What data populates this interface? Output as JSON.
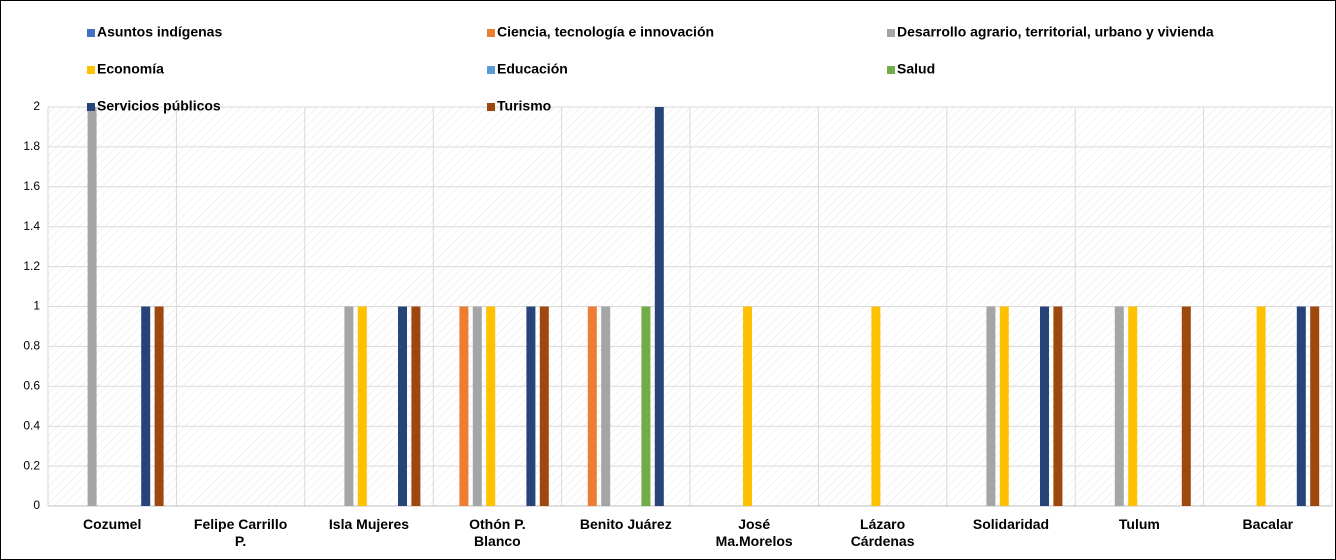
{
  "chart_data": {
    "type": "bar",
    "categories": [
      "Cozumel",
      "Felipe Carrillo P.",
      "Isla Mujeres",
      "Othón P. Blanco",
      "Benito Juárez",
      "José Ma.Morelos",
      "Lázaro Cárdenas",
      "Solidaridad",
      "Tulum",
      "Bacalar"
    ],
    "series": [
      {
        "name": "Asuntos indígenas",
        "color": "#4472c4",
        "values": [
          0,
          0,
          0,
          0,
          0,
          0,
          0,
          0,
          0,
          0
        ]
      },
      {
        "name": "Ciencia, tecnología e innovación",
        "color": "#ed7d31",
        "values": [
          0,
          0,
          0,
          1,
          1,
          0,
          0,
          0,
          0,
          0
        ]
      },
      {
        "name": "Desarrollo agrario, territorial, urbano y vivienda",
        "color": "#a5a5a5",
        "values": [
          2,
          0,
          1,
          1,
          1,
          0,
          0,
          1,
          1,
          0
        ]
      },
      {
        "name": "Economía",
        "color": "#ffc000",
        "values": [
          0,
          0,
          1,
          1,
          0,
          1,
          1,
          1,
          1,
          1
        ]
      },
      {
        "name": "Educación",
        "color": "#5b9bd5",
        "values": [
          0,
          0,
          0,
          0,
          0,
          0,
          0,
          0,
          0,
          0
        ]
      },
      {
        "name": "Salud",
        "color": "#70ad47",
        "values": [
          0,
          0,
          0,
          0,
          1,
          0,
          0,
          0,
          0,
          0
        ]
      },
      {
        "name": "Servicios públicos",
        "color": "#264478",
        "values": [
          1,
          0,
          1,
          1,
          2,
          0,
          0,
          1,
          0,
          1
        ]
      },
      {
        "name": "Turismo",
        "color": "#9e480e",
        "values": [
          1,
          0,
          1,
          1,
          0,
          0,
          0,
          1,
          1,
          1
        ]
      }
    ],
    "ylim": [
      0,
      2
    ],
    "yticks": [
      0,
      0.2,
      0.4,
      0.6,
      0.8,
      1,
      1.2,
      1.4,
      1.6,
      1.8,
      2
    ],
    "grid": true
  }
}
